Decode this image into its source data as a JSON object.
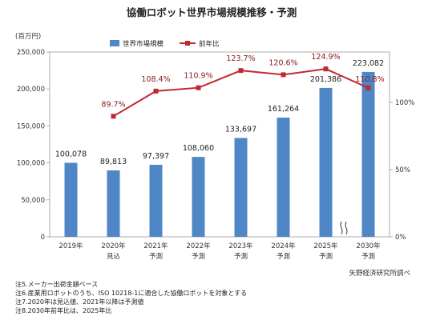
{
  "chart_data": {
    "type": "bar",
    "title": "協働ロボット世界市場規模推移・予測",
    "unit_label": "(百万円)",
    "categories": [
      {
        "year": "2019年",
        "sub": ""
      },
      {
        "year": "2020年",
        "sub": "見込"
      },
      {
        "year": "2021年",
        "sub": "予測"
      },
      {
        "year": "2022年",
        "sub": "予測"
      },
      {
        "year": "2023年",
        "sub": "予測"
      },
      {
        "year": "2024年",
        "sub": "予測"
      },
      {
        "year": "2025年",
        "sub": "予測"
      },
      {
        "year": "2030年",
        "sub": "予測"
      }
    ],
    "series": [
      {
        "name": "世界市場規模",
        "type": "bar",
        "axis": "left",
        "color": "#4f86c6",
        "values": [
          100078,
          89813,
          97397,
          108060,
          133697,
          161264,
          201386,
          223082
        ],
        "labels": [
          "100,078",
          "89,813",
          "97,397",
          "108,060",
          "133,697",
          "161,264",
          "201,386",
          "223,082"
        ]
      },
      {
        "name": "前年比",
        "type": "line",
        "axis": "right",
        "color": "#c0282d",
        "values": [
          null,
          89.7,
          108.4,
          110.9,
          123.7,
          120.6,
          124.9,
          110.8
        ],
        "labels": [
          "",
          "89.7%",
          "108.4%",
          "110.9%",
          "123.7%",
          "120.6%",
          "124.9%",
          "110.8%"
        ]
      }
    ],
    "y_left": {
      "min": 0,
      "max": 250000,
      "ticks": [
        0,
        50000,
        100000,
        150000,
        200000,
        250000
      ],
      "tick_labels": [
        "0",
        "50,000",
        "100,000",
        "150,000",
        "200,000",
        "250,000"
      ]
    },
    "y_right": {
      "min": 0,
      "max": 137.5,
      "ticks": [
        0,
        50,
        100
      ],
      "tick_labels": [
        "0%",
        "50%",
        "100%"
      ]
    },
    "legend_position": "top-center",
    "grid": false,
    "axis_break_between": [
      "2025年",
      "2030年"
    ],
    "notes": [
      "注5.メーカー出荷金額ベース",
      "注6.産業用ロボットのうち、ISO 10218-1に適合した協働ロボットを対象とする",
      "注7.2020年は見込値、2021年以降は予測値",
      "注8.2030年前年比は、2025年比"
    ],
    "source": "矢野経済研究所調べ"
  }
}
